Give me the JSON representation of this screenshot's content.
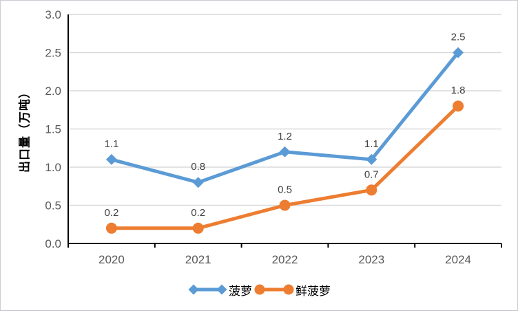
{
  "chart_data": {
    "type": "line",
    "title": "",
    "xlabel": "",
    "ylabel": "出口量（万吨）",
    "categories": [
      "2020",
      "2021",
      "2022",
      "2023",
      "2024"
    ],
    "series": [
      {
        "name": "菠萝",
        "color": "#5B9BD5",
        "marker": "diamond",
        "values": [
          1.1,
          0.8,
          1.2,
          1.1,
          2.5
        ],
        "labels": [
          "1.1",
          "0.8",
          "1.2",
          "1.1",
          "2.5"
        ]
      },
      {
        "name": "鲜菠萝",
        "color": "#ED7D31",
        "marker": "circle",
        "values": [
          0.2,
          0.2,
          0.5,
          0.7,
          1.8
        ],
        "labels": [
          "0.2",
          "0.2",
          "0.5",
          "0.7",
          "1.8"
        ]
      }
    ],
    "ylim": [
      0,
      3
    ],
    "ytick_step": 0.5,
    "ytick_labels": [
      "0.0",
      "0.5",
      "1.0",
      "1.5",
      "2.0",
      "2.5",
      "3.0"
    ],
    "grid": "horizontal",
    "legend_position": "bottom",
    "style": {
      "grid_color": "#D9D9D9",
      "axis_color": "#000000",
      "tick_label_color": "#595959",
      "data_label_color": "#404040"
    }
  }
}
